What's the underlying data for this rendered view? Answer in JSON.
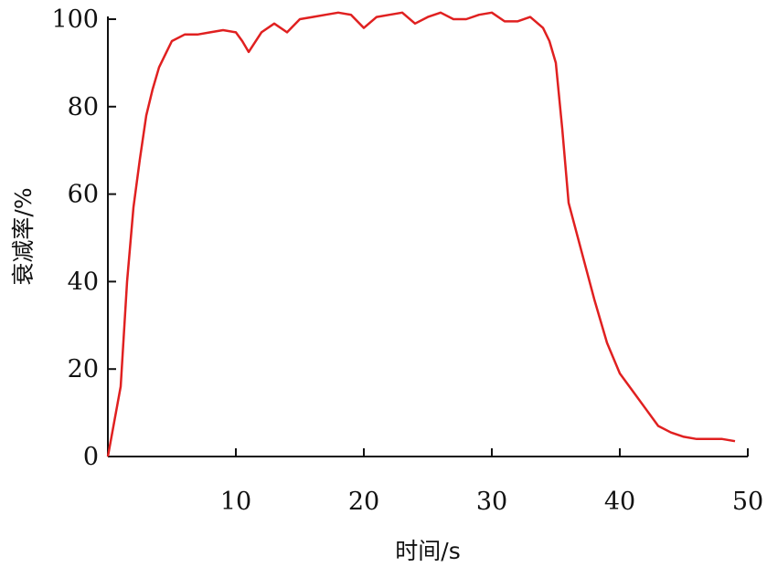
{
  "chart_data": {
    "type": "line",
    "xlabel": "时间/s",
    "ylabel": "衰减率/%",
    "xlim": [
      0,
      50
    ],
    "ylim": [
      0,
      100
    ],
    "xticks": [
      10,
      20,
      30,
      40,
      50
    ],
    "yticks": [
      0,
      20,
      40,
      60,
      80,
      100
    ],
    "x_tick_labels": [
      "10",
      "20",
      "30",
      "40",
      "50"
    ],
    "y_tick_labels": [
      "0",
      "20",
      "40",
      "60",
      "80",
      "100"
    ],
    "grid": false,
    "colors": {
      "series": "#e02020",
      "axis": "#111111"
    },
    "series": [
      {
        "x": [
          0,
          0.5,
          1,
          1.5,
          2,
          2.5,
          3,
          3.5,
          4,
          4.5,
          5,
          6,
          7,
          8,
          9,
          10,
          10.5,
          11,
          12,
          13,
          14,
          15,
          16,
          17,
          18,
          19,
          20,
          21,
          22,
          23,
          24,
          25,
          26,
          27,
          28,
          29,
          30,
          31,
          32,
          33,
          34,
          34.5,
          35,
          35.5,
          36,
          37,
          38,
          39,
          40,
          41,
          42,
          43,
          44,
          45,
          46,
          47,
          48,
          49
        ],
        "y": [
          0,
          8,
          16,
          40,
          57,
          68,
          78,
          84,
          89,
          92,
          95,
          96.5,
          96.5,
          97,
          97.5,
          97,
          95,
          92.5,
          97,
          99,
          97,
          100,
          100.5,
          101,
          101.5,
          101,
          98,
          100.5,
          101,
          101.5,
          99,
          100.5,
          101.5,
          100,
          100,
          101,
          101.5,
          99.5,
          99.5,
          100.5,
          98,
          95,
          90,
          75,
          58,
          47,
          36,
          26,
          19,
          15,
          11,
          7,
          5.5,
          4.5,
          4,
          4,
          4,
          3.5
        ]
      }
    ]
  }
}
